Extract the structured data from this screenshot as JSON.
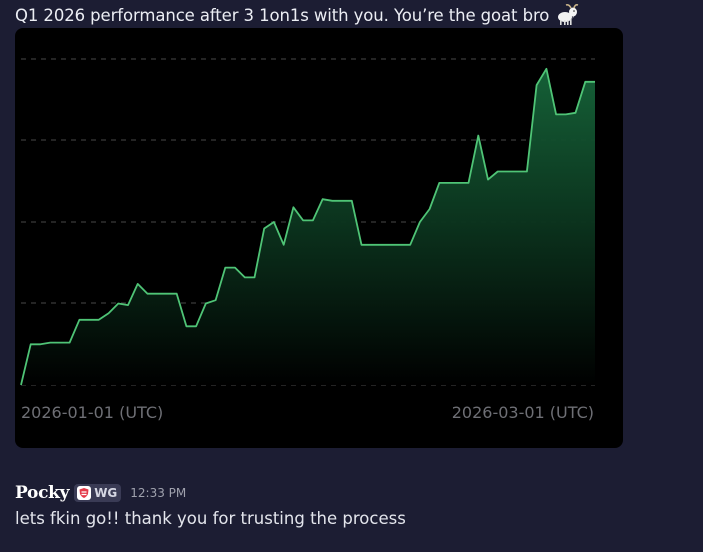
{
  "message1": {
    "text": "Q1 2026 performance after 3 1on1s with you. You’re the goat bro",
    "emoji": "goat-emoji"
  },
  "chart_data": {
    "type": "area",
    "x_tick_labels": [
      "2026-01-01 (UTC)",
      "2026-03-01 (UTC)"
    ],
    "x_start": "2026-01-01",
    "x_end": "2026-03-24",
    "grid": "horizontal-dashed",
    "colors": {
      "line": "#4fc476",
      "fill_top": "#16653a",
      "fill_bottom": "#000000",
      "grid": "#3a3a3a",
      "background": "#000000"
    },
    "values": [
      0.0,
      2.5,
      2.5,
      2.6,
      2.6,
      2.6,
      4.0,
      4.0,
      4.0,
      4.4,
      5.0,
      4.9,
      6.2,
      5.6,
      5.6,
      5.6,
      5.6,
      3.6,
      3.6,
      5.0,
      5.2,
      7.2,
      7.2,
      6.6,
      6.6,
      9.6,
      10.0,
      8.6,
      10.9,
      10.1,
      10.1,
      11.4,
      11.3,
      11.3,
      11.3,
      8.6,
      8.6,
      8.6,
      8.6,
      8.6,
      8.6,
      10.0,
      10.8,
      12.4,
      12.4,
      12.4,
      12.4,
      15.3,
      12.6,
      13.1,
      13.1,
      13.1,
      13.1,
      18.4,
      19.4,
      16.6,
      16.6,
      16.7,
      18.6,
      18.6
    ]
  },
  "message2": {
    "username": "Pocky",
    "tag": "WG",
    "tag_icon": "shield-icon",
    "timestamp": "12:33 PM",
    "text": "lets fkin go!! thank you for trusting the process"
  }
}
